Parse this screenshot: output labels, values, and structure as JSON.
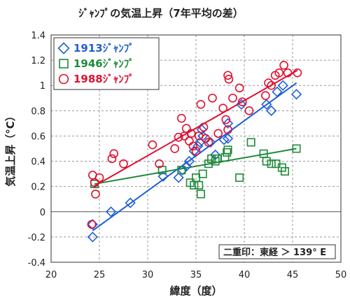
{
  "chart_data": {
    "type": "scatter",
    "title": "ｼﾞｬﾝﾌﾟの気温上昇（7年平均の差）",
    "xlabel": "緯度（度）",
    "ylabel": "気温上昇（°C）",
    "xlim": [
      20,
      50
    ],
    "ylim": [
      -0.4,
      1.4
    ],
    "xticks": [
      "20",
      "25",
      "30",
      "35",
      "40",
      "45",
      "50"
    ],
    "yticks": [
      "-0.4",
      "-0.2",
      "0",
      "0.2",
      "0.4",
      "0.6",
      "0.8",
      "1",
      "1.2",
      "1.4"
    ],
    "grid": "dashed",
    "legend_position": "top-left",
    "note": "二重印：東経 ＞ 139° E",
    "series": [
      {
        "name": "1913ｼﾞｬﾝﾌﾟ",
        "marker": "diamond",
        "color": "#1f5fd6",
        "points": [
          [
            24.3,
            -0.2
          ],
          [
            24.3,
            -0.1
          ],
          [
            26.2,
            0.0
          ],
          [
            28.2,
            0.07
          ],
          [
            31.6,
            0.28
          ],
          [
            33.2,
            0.27
          ],
          [
            33.6,
            0.33
          ],
          [
            34.0,
            0.36
          ],
          [
            34.3,
            0.4
          ],
          [
            34.8,
            0.48
          ],
          [
            35.2,
            0.52
          ],
          [
            35.4,
            0.55
          ],
          [
            35.6,
            0.65
          ],
          [
            35.7,
            0.6
          ],
          [
            36.5,
            0.55
          ],
          [
            37.0,
            0.45
          ],
          [
            37.9,
            0.57
          ],
          [
            38.3,
            0.7
          ],
          [
            38.3,
            0.58
          ],
          [
            39.7,
            0.85
          ],
          [
            42.3,
            0.85
          ],
          [
            42.8,
            0.8
          ],
          [
            43.4,
            0.95
          ],
          [
            44.0,
            1.0
          ],
          [
            45.4,
            0.93
          ]
        ],
        "fit": [
          [
            24.3,
            -0.15
          ],
          [
            45.4,
            1.02
          ]
        ]
      },
      {
        "name": "1946ｼﾞｬﾝﾌﾟ",
        "marker": "square",
        "color": "#1f8a3a",
        "points": [
          [
            24.5,
            0.22
          ],
          [
            31.5,
            0.33
          ],
          [
            33.5,
            0.33
          ],
          [
            34.4,
            0.23
          ],
          [
            34.8,
            0.21
          ],
          [
            35.0,
            0.27
          ],
          [
            35.3,
            0.21
          ],
          [
            35.5,
            0.14
          ],
          [
            35.7,
            0.3
          ],
          [
            36.3,
            0.38
          ],
          [
            36.6,
            0.42
          ],
          [
            37.0,
            0.4
          ],
          [
            37.2,
            0.42
          ],
          [
            38.0,
            0.43
          ],
          [
            38.2,
            0.47
          ],
          [
            38.3,
            0.49
          ],
          [
            39.5,
            0.27
          ],
          [
            40.7,
            0.55
          ],
          [
            42.0,
            0.46
          ],
          [
            42.3,
            0.4
          ],
          [
            42.8,
            0.38
          ],
          [
            43.3,
            0.38
          ],
          [
            43.9,
            0.35
          ],
          [
            44.2,
            0.32
          ],
          [
            45.4,
            0.5
          ]
        ],
        "fit": [
          [
            24.5,
            0.22
          ],
          [
            45.4,
            0.5
          ]
        ]
      },
      {
        "name": "1988ｼﾞｬﾝﾌﾟ",
        "marker": "circle",
        "color": "#e01030",
        "points": [
          [
            24.2,
            -0.1
          ],
          [
            24.3,
            0.29
          ],
          [
            24.5,
            0.23
          ],
          [
            24.6,
            0.14
          ],
          [
            25.0,
            0.27
          ],
          [
            26.3,
            0.42
          ],
          [
            26.5,
            0.46
          ],
          [
            27.5,
            0.38
          ],
          [
            30.5,
            0.53
          ],
          [
            31.2,
            0.38
          ],
          [
            32.8,
            0.5
          ],
          [
            33.2,
            0.59
          ],
          [
            33.5,
            0.74
          ],
          [
            33.8,
            0.6
          ],
          [
            34.0,
            0.66
          ],
          [
            34.3,
            0.56
          ],
          [
            34.5,
            0.62
          ],
          [
            34.7,
            0.52
          ],
          [
            35.0,
            0.48
          ],
          [
            35.3,
            0.6
          ],
          [
            35.5,
            0.85
          ],
          [
            35.8,
            0.67
          ],
          [
            36.0,
            0.58
          ],
          [
            36.3,
            0.55
          ],
          [
            36.7,
            0.9
          ],
          [
            37.3,
            0.62
          ],
          [
            37.8,
            0.82
          ],
          [
            38.1,
            0.73
          ],
          [
            38.3,
            0.65
          ],
          [
            38.3,
            1.08
          ],
          [
            38.4,
            1.05
          ],
          [
            38.8,
            0.9
          ],
          [
            39.5,
            0.98
          ],
          [
            39.8,
            0.87
          ],
          [
            40.5,
            0.8
          ],
          [
            42.2,
            0.92
          ],
          [
            42.5,
            1.02
          ],
          [
            42.8,
            1.0
          ],
          [
            43.2,
            1.08
          ],
          [
            43.6,
            1.1
          ],
          [
            44.1,
            1.16
          ],
          [
            44.5,
            1.1
          ],
          [
            45.5,
            1.1
          ]
        ],
        "fit": [
          [
            24.4,
            0.2
          ],
          [
            45.5,
            1.12
          ]
        ]
      }
    ]
  }
}
